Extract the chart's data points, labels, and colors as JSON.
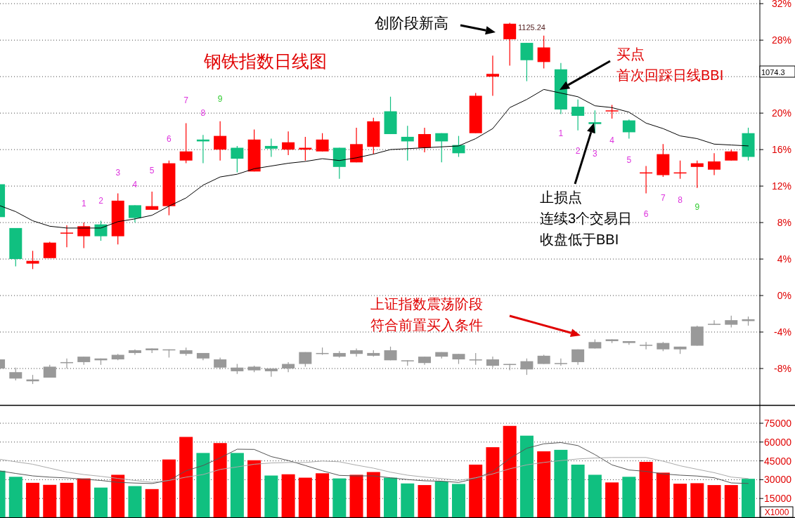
{
  "chart_data": [
    {
      "type": "candlestick",
      "title": "钢铁指数日线图",
      "categories": [
        null,
        null,
        null,
        null,
        null,
        null,
        null,
        null,
        null,
        null,
        null,
        null,
        null,
        null,
        null,
        null,
        null,
        null,
        null,
        null,
        null,
        null,
        null,
        null,
        null,
        null,
        null,
        null,
        null,
        null,
        null,
        null,
        null,
        null,
        null,
        null,
        null,
        null,
        null,
        null,
        null,
        null,
        null,
        null,
        null
      ],
      "series": [
        {
          "ohlc": [
            [
              12.2,
              12.2,
              8.6,
              8.6
            ],
            [
              7.4,
              7.4,
              3.2,
              4.0
            ],
            [
              3.5,
              4.9,
              2.9,
              3.8
            ],
            [
              4.1,
              5.9,
              4.1,
              5.8
            ],
            [
              6.8,
              7.7,
              5.3,
              6.9
            ],
            [
              6.5,
              8.0,
              5.2,
              7.6
            ],
            [
              7.8,
              8.2,
              6.0,
              6.5
            ],
            [
              6.5,
              11.2,
              5.6,
              10.4
            ],
            [
              9.9,
              9.9,
              8.0,
              8.5
            ],
            [
              9.4,
              11.4,
              9.4,
              9.8
            ],
            [
              9.8,
              14.8,
              8.8,
              14.5
            ],
            [
              14.8,
              18.9,
              14.5,
              15.8
            ],
            [
              17.1,
              17.6,
              14.5,
              16.9
            ],
            [
              16.0,
              19.1,
              14.8,
              17.5
            ],
            [
              16.2,
              16.4,
              13.5,
              15.0
            ],
            [
              13.6,
              18.2,
              13.6,
              17.1
            ],
            [
              16.4,
              17.2,
              15.2,
              16.1
            ],
            [
              16.0,
              18.0,
              15.4,
              16.8
            ],
            [
              16.0,
              17.4,
              14.8,
              16.2
            ],
            [
              15.8,
              17.8,
              15.8,
              17.1
            ],
            [
              16.2,
              16.2,
              12.8,
              14.1
            ],
            [
              14.6,
              18.4,
              14.6,
              16.6
            ],
            [
              16.3,
              19.5,
              15.5,
              19.1
            ],
            [
              20.2,
              21.8,
              17.7,
              17.7
            ],
            [
              17.4,
              18.6,
              14.8,
              16.9
            ],
            [
              16.2,
              18.4,
              15.7,
              17.7
            ],
            [
              17.8,
              17.8,
              14.6,
              16.9
            ],
            [
              16.5,
              17.5,
              15.2,
              15.6
            ],
            [
              17.8,
              22.2,
              17.8,
              21.9
            ],
            [
              24.0,
              26.3,
              21.9,
              24.3
            ],
            [
              28.1,
              29.9,
              25.2,
              29.8
            ],
            [
              27.7,
              27.7,
              23.5,
              25.8
            ],
            [
              25.6,
              28.5,
              24.9,
              27.2
            ],
            [
              24.8,
              25.5,
              19.9,
              20.4
            ],
            [
              20.7,
              21.5,
              18.1,
              19.7
            ],
            [
              19.0,
              20.3,
              17.8,
              18.8
            ],
            [
              20.2,
              20.9,
              19.4,
              20.3
            ],
            [
              19.2,
              19.3,
              17.2,
              17.9
            ],
            [
              13.4,
              14.2,
              11.2,
              13.5
            ],
            [
              13.2,
              16.6,
              13.0,
              15.5
            ],
            [
              13.4,
              14.8,
              12.8,
              13.5
            ],
            [
              14.1,
              14.8,
              11.8,
              14.5
            ],
            [
              13.8,
              15.6,
              13.2,
              14.7
            ],
            [
              14.8,
              16.0,
              14.8,
              15.8
            ],
            [
              17.8,
              18.4,
              14.8,
              15.2
            ]
          ],
          "colors": [
            "#10c080",
            "#10c080",
            "#ff0000",
            "#ff0000",
            "#ff0000",
            "#ff0000",
            "#10c080",
            "#ff0000",
            "#10c080",
            "#ff0000",
            "#ff0000",
            "#ff0000",
            "#10c080",
            "#ff0000",
            "#10c080",
            "#ff0000",
            "#10c080",
            "#ff0000",
            "#ff0000",
            "#ff0000",
            "#10c080",
            "#ff0000",
            "#ff0000",
            "#10c080",
            "#10c080",
            "#ff0000",
            "#10c080",
            "#10c080",
            "#ff0000",
            "#ff0000",
            "#ff0000",
            "#10c080",
            "#ff0000",
            "#10c080",
            "#10c080",
            "#10c080",
            "#ff0000",
            "#10c080",
            "#ff0000",
            "#ff0000",
            "#ff0000",
            "#ff0000",
            "#ff0000",
            "#ff0000",
            "#10c080"
          ]
        },
        {
          "type": "candlestick",
          "color": "#999999",
          "ohlc": [
            [
              -7.0,
              -7.0,
              -8.0,
              -8.0
            ],
            [
              -8.4,
              -7.9,
              -9.3,
              -9.1
            ],
            [
              -9.2,
              -8.7,
              -9.7,
              -9.4
            ],
            [
              -7.8,
              -7.6,
              -9.0,
              -9.0
            ],
            [
              -7.3,
              -6.9,
              -8.0,
              -7.4
            ],
            [
              -6.7,
              -6.7,
              -7.6,
              -7.3
            ],
            [
              -6.9,
              -6.9,
              -7.6,
              -7.1
            ],
            [
              -6.5,
              -6.4,
              -7.1,
              -7.0
            ],
            [
              -6.0,
              -5.9,
              -6.5,
              -6.3
            ],
            [
              -5.8,
              -5.8,
              -6.3,
              -6.0
            ],
            [
              -5.9,
              -5.9,
              -6.8,
              -6.0
            ],
            [
              -6.0,
              -5.7,
              -6.6,
              -6.4
            ],
            [
              -6.3,
              -6.3,
              -7.1,
              -6.9
            ],
            [
              -7.0,
              -6.8,
              -8.1,
              -7.9
            ],
            [
              -7.9,
              -7.5,
              -8.6,
              -8.3
            ],
            [
              -7.8,
              -7.7,
              -8.4,
              -8.2
            ],
            [
              -8.0,
              -8.0,
              -8.9,
              -8.3
            ],
            [
              -7.5,
              -7.3,
              -8.4,
              -8.0
            ],
            [
              -6.2,
              -6.2,
              -7.8,
              -7.5
            ],
            [
              -6.3,
              -5.7,
              -6.5,
              -6.4
            ],
            [
              -6.3,
              -6.1,
              -6.8,
              -6.7
            ],
            [
              -6.0,
              -5.8,
              -6.7,
              -6.4
            ],
            [
              -6.3,
              -6.0,
              -6.7,
              -6.6
            ],
            [
              -6.0,
              -5.6,
              -7.1,
              -7.1
            ],
            [
              -7.1,
              -7.1,
              -7.7,
              -7.2
            ],
            [
              -6.7,
              -6.7,
              -7.6,
              -7.4
            ],
            [
              -6.2,
              -6.2,
              -6.9,
              -6.7
            ],
            [
              -6.4,
              -6.4,
              -7.5,
              -7.0
            ],
            [
              -7.0,
              -6.3,
              -7.6,
              -7.1
            ],
            [
              -7.0,
              -6.7,
              -7.9,
              -7.7
            ],
            [
              -7.5,
              -7.5,
              -8.2,
              -7.6
            ],
            [
              -7.2,
              -6.9,
              -8.7,
              -8.1
            ],
            [
              -6.6,
              -6.5,
              -7.5,
              -7.5
            ],
            [
              -7.4,
              -6.9,
              -7.7,
              -7.5
            ],
            [
              -5.9,
              -5.9,
              -7.6,
              -7.3
            ],
            [
              -5.1,
              -4.8,
              -5.8,
              -5.8
            ],
            [
              -4.8,
              -4.8,
              -5.2,
              -5.0
            ],
            [
              -5.0,
              -5.0,
              -5.4,
              -5.2
            ],
            [
              -5.4,
              -5.1,
              -5.9,
              -5.5
            ],
            [
              -5.2,
              -5.1,
              -6.1,
              -5.9
            ],
            [
              -5.6,
              -5.6,
              -6.4,
              -5.9
            ],
            [
              -3.4,
              -3.3,
              -5.5,
              -5.5
            ],
            [
              -3.1,
              -2.7,
              -3.2,
              -3.2
            ],
            [
              -2.7,
              -2.2,
              -3.5,
              -3.2
            ],
            [
              -2.6,
              -2.3,
              -3.3,
              -2.8
            ]
          ]
        },
        {
          "type": "line",
          "color": "#000000",
          "values": [
            9.9,
            9.2,
            8.2,
            7.6,
            7.4,
            7.4,
            7.4,
            8.1,
            8.4,
            8.8,
            9.8,
            10.7,
            12.1,
            13.0,
            13.3,
            13.9,
            14.2,
            14.5,
            14.7,
            15.0,
            14.8,
            15.1,
            15.5,
            16.0,
            16.1,
            16.2,
            16.3,
            16.4,
            17.2,
            18.3,
            20.6,
            21.5,
            22.6,
            22.2,
            21.8,
            20.8,
            20.6,
            20.1,
            18.9,
            18.3,
            17.5,
            17.2,
            16.6,
            16.5,
            16.4
          ]
        }
      ],
      "ylim": [
        -12,
        32.4
      ],
      "yticks": [
        {
          "value": 32,
          "label": "32%"
        },
        {
          "value": 28,
          "label": "28%"
        },
        {
          "value": 24,
          "label": null
        },
        {
          "value": 20,
          "label": "20%"
        },
        {
          "value": 16,
          "label": "16%"
        },
        {
          "value": 12,
          "label": "12%"
        },
        {
          "value": 8,
          "label": "8%"
        },
        {
          "value": 4,
          "label": "4%"
        },
        {
          "value": 0,
          "label": "0%"
        },
        {
          "value": -4,
          "label": "-4%"
        },
        {
          "value": -8,
          "label": "-8%"
        }
      ],
      "grid": "y",
      "tick_labels": "y",
      "annotations": [
        "创阶段新高",
        "1125.24",
        "买点",
        "首次回踩日线BBI",
        "止损点",
        "连续3个交易日",
        "收盘低于BBI",
        "上证指数震荡阶段",
        "符合前置买入条件",
        "1074.3",
        "1",
        "2",
        "3",
        "4",
        "5",
        "6",
        "7",
        "8",
        "9",
        "1",
        "2",
        "3",
        "4",
        "5",
        "6",
        "7",
        "8",
        "9"
      ]
    },
    {
      "type": "bar",
      "categories": [
        null,
        null,
        null,
        null,
        null,
        null,
        null,
        null,
        null,
        null,
        null,
        null,
        null,
        null,
        null,
        null,
        null,
        null,
        null,
        null,
        null,
        null,
        null,
        null,
        null,
        null,
        null,
        null,
        null,
        null,
        null,
        null,
        null,
        null,
        null,
        null,
        null,
        null,
        null,
        null,
        null,
        null,
        null,
        null,
        null
      ],
      "series": [
        {
          "values": [
            37100,
            32300,
            27500,
            25900,
            27500,
            31000,
            23700,
            33900,
            24900,
            22500,
            46100,
            64100,
            51300,
            59200,
            51300,
            45500,
            33300,
            34300,
            31600,
            35100,
            31000,
            33900,
            36100,
            31600,
            27000,
            25700,
            28600,
            26600,
            42000,
            55900,
            72900,
            65100,
            52600,
            53800,
            42000,
            33900,
            27800,
            32300,
            44200,
            35600,
            26800,
            27200,
            25700,
            25700,
            30700
          ],
          "colors": [
            "#10c080",
            "#10c080",
            "#ff0000",
            "#ff0000",
            "#ff0000",
            "#ff0000",
            "#10c080",
            "#ff0000",
            "#10c080",
            "#ff0000",
            "#ff0000",
            "#ff0000",
            "#10c080",
            "#ff0000",
            "#10c080",
            "#ff0000",
            "#10c080",
            "#ff0000",
            "#ff0000",
            "#ff0000",
            "#10c080",
            "#ff0000",
            "#ff0000",
            "#10c080",
            "#10c080",
            "#ff0000",
            "#10c080",
            "#10c080",
            "#ff0000",
            "#ff0000",
            "#ff0000",
            "#10c080",
            "#ff0000",
            "#10c080",
            "#10c080",
            "#10c080",
            "#ff0000",
            "#10c080",
            "#ff0000",
            "#ff0000",
            "#ff0000",
            "#ff0000",
            "#ff0000",
            "#ff0000",
            "#10c080"
          ]
        },
        {
          "type": "line",
          "color": "#555555",
          "values": [
            37100,
            35000,
            33000,
            32000,
            31400,
            30400,
            29400,
            27900,
            27300,
            26900,
            29400,
            37100,
            41300,
            47400,
            54300,
            54100,
            48400,
            45300,
            41300,
            37100,
            33400,
            33000,
            33000,
            31500,
            30100,
            29100,
            28800,
            27800,
            30900,
            36600,
            46900,
            55100,
            58600,
            59600,
            57200,
            50000,
            41800,
            37700,
            36600,
            34600,
            33600,
            32900,
            31500,
            27400,
            27000
          ]
        },
        {
          "type": "line",
          "color": "#aaaaaa",
          "values": [
            46400,
            44300,
            42300,
            39200,
            36100,
            34100,
            32700,
            31000,
            29400,
            27900,
            29400,
            32000,
            34100,
            38200,
            40200,
            42300,
            43300,
            43700,
            43700,
            44900,
            44300,
            41600,
            39200,
            36000,
            33600,
            32100,
            30900,
            29400,
            31500,
            34600,
            38700,
            41800,
            43800,
            45200,
            46500,
            47300,
            47700,
            47700,
            47700,
            44800,
            41100,
            38300,
            35600,
            32100,
            30900
          ]
        }
      ],
      "ylim": [
        0,
        89000
      ],
      "yticks": [
        15000,
        30000,
        45000,
        60000,
        75000
      ],
      "grid": "y",
      "tick_labels": "y",
      "annotations": [
        "X1000"
      ]
    }
  ]
}
